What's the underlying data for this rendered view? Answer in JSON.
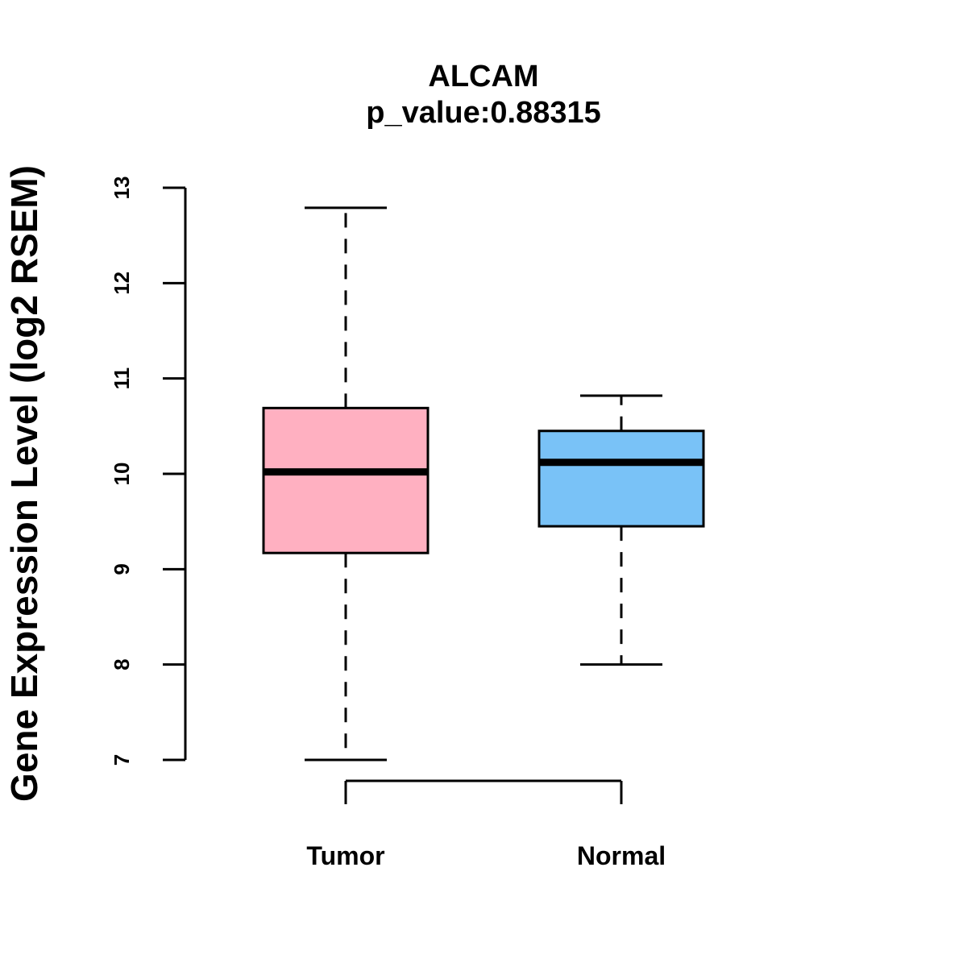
{
  "chart_data": {
    "type": "boxplot",
    "title": "ALCAM",
    "subtitle": "p_value:0.88315",
    "xlabel": "",
    "ylabel": "Gene Expression Level (log2 RSEM)",
    "ylim": [
      7,
      13
    ],
    "yticks": [
      7,
      8,
      9,
      10,
      11,
      12,
      13
    ],
    "grid": false,
    "categories": [
      "Tumor",
      "Normal"
    ],
    "boxes": [
      {
        "name": "Tumor",
        "color": "#FFB0C1",
        "whisker_low": 7.0,
        "q1": 9.17,
        "median": 10.02,
        "q3": 10.69,
        "whisker_high": 12.79
      },
      {
        "name": "Normal",
        "color": "#79C2F7",
        "whisker_low": 8.0,
        "q1": 9.45,
        "median": 10.12,
        "q3": 10.45,
        "whisker_high": 10.82
      }
    ]
  }
}
